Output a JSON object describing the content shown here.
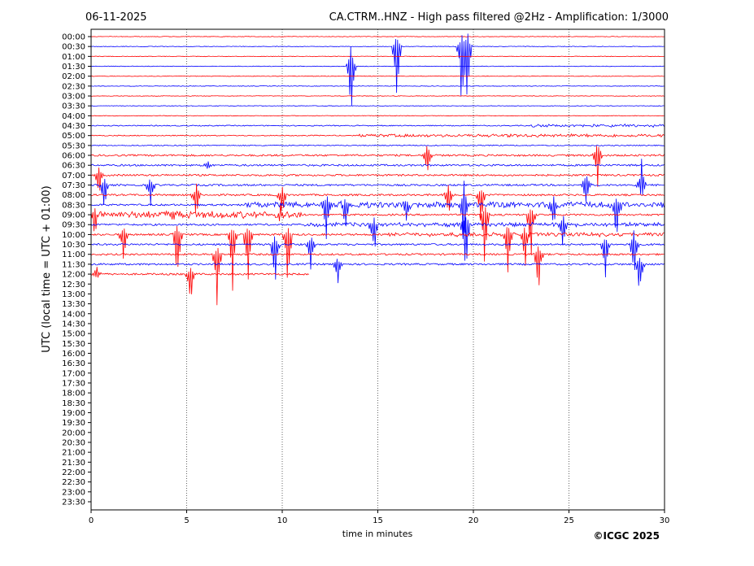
{
  "chart_data": {
    "type": "line",
    "date": "06-11-2025",
    "title": "CA.CTRM..HNZ - High pass filtered @2Hz - Amplification: 1/3000",
    "xlabel": "time in minutes",
    "ylabel": "UTC (local time = UTC + 01:00)",
    "copyright": "©ICGC 2025",
    "xlim": [
      0,
      30
    ],
    "x_ticks": [
      "0",
      "5",
      "10",
      "15",
      "20",
      "25",
      "30"
    ],
    "x_tick_values": [
      0,
      5,
      10,
      15,
      20,
      25,
      30
    ],
    "grid": "vertical dotted at each x tick",
    "y_ticks": [
      "00:00",
      "00:30",
      "01:00",
      "01:30",
      "02:00",
      "02:30",
      "03:00",
      "03:30",
      "04:00",
      "04:30",
      "05:00",
      "05:30",
      "06:00",
      "06:30",
      "07:00",
      "07:30",
      "08:00",
      "08:30",
      "09:00",
      "09:30",
      "10:00",
      "10:30",
      "11:00",
      "11:30",
      "12:00",
      "12:30",
      "13:00",
      "13:30",
      "14:00",
      "14:30",
      "15:00",
      "15:30",
      "16:00",
      "16:30",
      "17:00",
      "17:30",
      "18:00",
      "18:30",
      "19:00",
      "19:30",
      "20:00",
      "20:30",
      "21:00",
      "21:30",
      "22:00",
      "22:30",
      "23:00",
      "23:30"
    ],
    "recorded_until_minute_of_last_row": 11.4,
    "colors": {
      "even_rows": "#ff0000",
      "odd_rows": "#0000ff",
      "text": "#000000",
      "grid": "#000000"
    },
    "events": [
      {
        "row": 3,
        "minute": 13.6,
        "amp_up": 2.6,
        "amp_down": 6.5
      },
      {
        "row": 1,
        "minute": 16.0,
        "amp_up": 1.6,
        "amp_down": 9.0
      },
      {
        "row": 1,
        "minute": 19.4,
        "amp_up": 1.6,
        "amp_down": 9.0
      },
      {
        "row": 1,
        "minute": 19.7,
        "amp_up": 1.6,
        "amp_down": 8.5
      },
      {
        "row": 12,
        "minute": 17.6,
        "amp_up": 1.5,
        "amp_down": 2.5
      },
      {
        "row": 12,
        "minute": 26.5,
        "amp_up": 2.5,
        "amp_down": 4.0
      },
      {
        "row": 13,
        "minute": 6.1,
        "amp_up": 0.6,
        "amp_down": 0.6
      },
      {
        "row": 14,
        "minute": 0.4,
        "amp_up": 1.0,
        "amp_down": 3.0
      },
      {
        "row": 15,
        "minute": 0.7,
        "amp_up": 1.0,
        "amp_down": 4.0
      },
      {
        "row": 15,
        "minute": 3.1,
        "amp_up": 1.0,
        "amp_down": 3.0
      },
      {
        "row": 15,
        "minute": 25.9,
        "amp_up": 2.0,
        "amp_down": 3.0
      },
      {
        "row": 15,
        "minute": 28.8,
        "amp_up": 3.0,
        "amp_down": 2.0
      },
      {
        "row": 16,
        "minute": 5.5,
        "amp_up": 1.5,
        "amp_down": 3.0
      },
      {
        "row": 16,
        "minute": 10.0,
        "amp_up": 1.0,
        "amp_down": 3.0
      },
      {
        "row": 16,
        "minute": 18.7,
        "amp_up": 1.5,
        "amp_down": 3.0
      },
      {
        "row": 16,
        "minute": 20.4,
        "amp_up": 1.0,
        "amp_down": 5.0
      },
      {
        "row": 17,
        "minute": 12.3,
        "amp_up": 1.5,
        "amp_down": 5.0
      },
      {
        "row": 17,
        "minute": 13.3,
        "amp_up": 1.0,
        "amp_down": 4.0
      },
      {
        "row": 17,
        "minute": 16.5,
        "amp_up": 1.0,
        "amp_down": 2.0
      },
      {
        "row": 17,
        "minute": 19.5,
        "amp_up": 2.5,
        "amp_down": 6.0
      },
      {
        "row": 17,
        "minute": 24.2,
        "amp_up": 1.0,
        "amp_down": 4.0
      },
      {
        "row": 17,
        "minute": 27.5,
        "amp_up": 1.0,
        "amp_down": 5.0
      },
      {
        "row": 18,
        "minute": 0.2,
        "amp_up": 1.0,
        "amp_down": 3.0
      },
      {
        "row": 18,
        "minute": 4.3,
        "amp_up": 0.7,
        "amp_down": 0.7
      },
      {
        "row": 18,
        "minute": 9.9,
        "amp_up": 1.2,
        "amp_down": 1.0
      },
      {
        "row": 18,
        "minute": 20.6,
        "amp_up": 1.0,
        "amp_down": 8.0
      },
      {
        "row": 18,
        "minute": 23.0,
        "amp_up": 1.0,
        "amp_down": 6.0
      },
      {
        "row": 19,
        "minute": 14.8,
        "amp_up": 1.0,
        "amp_down": 4.5
      },
      {
        "row": 19,
        "minute": 19.6,
        "amp_up": 1.0,
        "amp_down": 7.5
      },
      {
        "row": 19,
        "minute": 24.7,
        "amp_up": 1.0,
        "amp_down": 4.0
      },
      {
        "row": 20,
        "minute": 1.7,
        "amp_up": 1.0,
        "amp_down": 4.5
      },
      {
        "row": 20,
        "minute": 4.5,
        "amp_up": 1.0,
        "amp_down": 8.5
      },
      {
        "row": 20,
        "minute": 7.4,
        "amp_up": 1.0,
        "amp_down": 6.5
      },
      {
        "row": 20,
        "minute": 8.2,
        "amp_up": 1.0,
        "amp_down": 8.5
      },
      {
        "row": 20,
        "minute": 10.3,
        "amp_up": 1.0,
        "amp_down": 8.5
      },
      {
        "row": 20,
        "minute": 21.8,
        "amp_up": 1.0,
        "amp_down": 5.5
      },
      {
        "row": 20,
        "minute": 22.7,
        "amp_up": 1.0,
        "amp_down": 5.0
      },
      {
        "row": 21,
        "minute": 9.6,
        "amp_up": 1.0,
        "amp_down": 6.5
      },
      {
        "row": 21,
        "minute": 11.5,
        "amp_up": 1.0,
        "amp_down": 3.0
      },
      {
        "row": 21,
        "minute": 26.9,
        "amp_up": 1.0,
        "amp_down": 4.5
      },
      {
        "row": 21,
        "minute": 28.4,
        "amp_up": 1.5,
        "amp_down": 5.0
      },
      {
        "row": 22,
        "minute": 6.6,
        "amp_up": 1.0,
        "amp_down": 6.5
      },
      {
        "row": 22,
        "minute": 23.4,
        "amp_up": 1.0,
        "amp_down": 5.0
      },
      {
        "row": 23,
        "minute": 12.9,
        "amp_up": 1.0,
        "amp_down": 2.5
      },
      {
        "row": 23,
        "minute": 28.7,
        "amp_up": 1.0,
        "amp_down": 4.5
      },
      {
        "row": 24,
        "minute": 0.3,
        "amp_up": 1.0,
        "amp_down": 0.6
      },
      {
        "row": 24,
        "minute": 5.2,
        "amp_up": 1.0,
        "amp_down": 4.5
      }
    ],
    "noisy_patches": [
      {
        "row": 10,
        "from": 14,
        "to": 30,
        "level": 0.25
      },
      {
        "row": 9,
        "from": 23,
        "to": 30,
        "level": 0.25
      },
      {
        "row": 17,
        "from": 8,
        "to": 30,
        "level": 0.5
      },
      {
        "row": 18,
        "from": 0,
        "to": 11,
        "level": 0.6
      },
      {
        "row": 19,
        "from": 11,
        "to": 30,
        "level": 0.3
      },
      {
        "row": 20,
        "from": 15,
        "to": 30,
        "level": 0.3
      }
    ]
  }
}
